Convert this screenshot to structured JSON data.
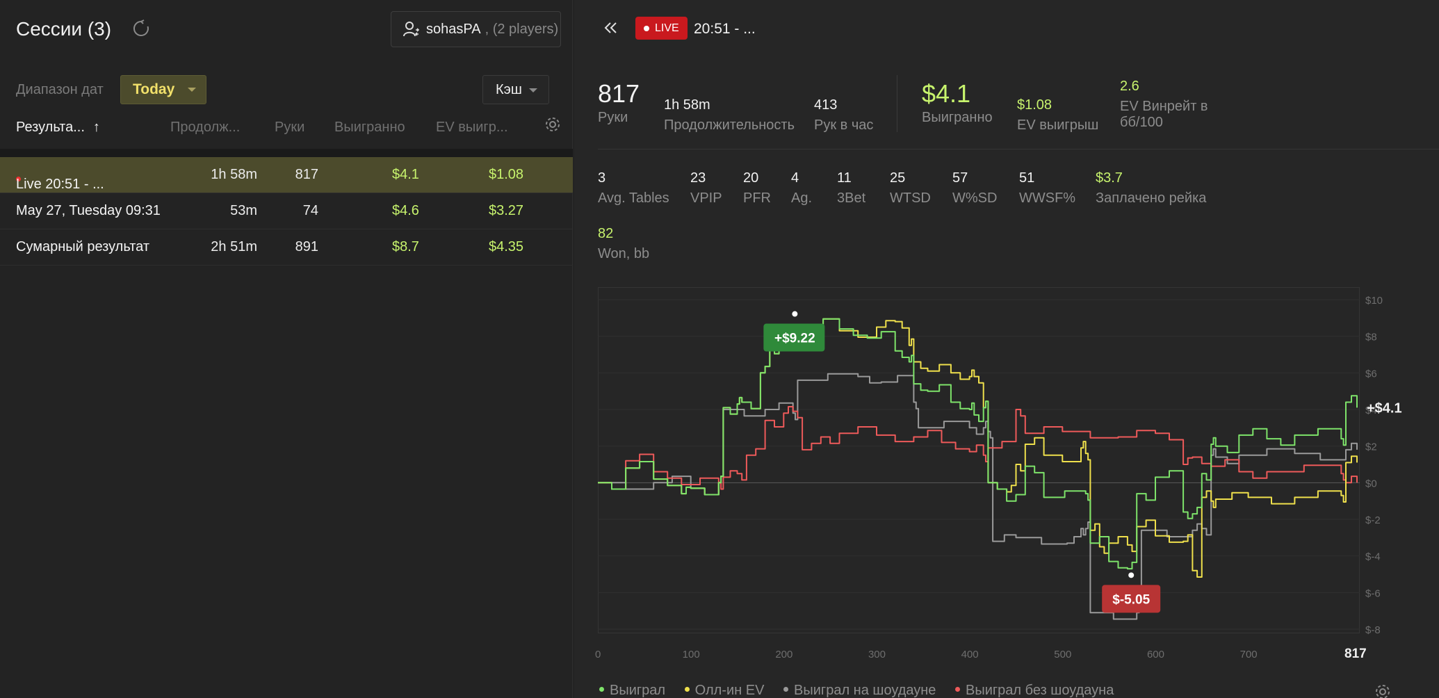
{
  "left": {
    "title": "Сессии (3)",
    "players_button": {
      "name": "sohasPA",
      "count": ", (2 players)"
    },
    "date_range_label": "Диапазон дат",
    "date_select": "Today",
    "game_select": "Кэш",
    "columns": {
      "result": "Результа...",
      "sort_arrow": "↑",
      "duration": "Продолж...",
      "hands": "Руки",
      "won": "Выигранно",
      "ev": "EV выигр..."
    },
    "rows": [
      {
        "name": "Live 20:51 - ...",
        "duration": "1h 58m",
        "hands": "817",
        "won": "$4.1",
        "ev": "$1.08"
      },
      {
        "name": "May 27, Tuesday 09:31",
        "duration": "53m",
        "hands": "74",
        "won": "$4.6",
        "ev": "$3.27"
      },
      {
        "name": "Сумарный результат",
        "duration": "2h 51m",
        "hands": "891",
        "won": "$8.7",
        "ev": "$4.35"
      }
    ]
  },
  "right": {
    "live_label": "LIVE",
    "session_time": "20:51 - ...",
    "top_stats": {
      "hands": {
        "value": "817",
        "label": "Руки"
      },
      "duration": {
        "value": "1h 58m",
        "label": "Продолжительность"
      },
      "hands_per_hour": {
        "value": "413",
        "label": "Рук в час"
      },
      "won": {
        "value": "$4.1",
        "label": "Выигранно"
      },
      "ev_won": {
        "value": "$1.08",
        "label": "EV выигрыш"
      },
      "ev_winrate": {
        "value": "2.6",
        "label_line1": "EV Винрейт в",
        "label_line2": "бб/100"
      }
    },
    "stats": [
      {
        "value": "3",
        "label": "Avg. Tables"
      },
      {
        "value": "23",
        "label": "VPIP"
      },
      {
        "value": "20",
        "label": "PFR"
      },
      {
        "value": "4",
        "label": "Ag."
      },
      {
        "value": "11",
        "label": "3Bet"
      },
      {
        "value": "25",
        "label": "WTSD"
      },
      {
        "value": "57",
        "label": "W%SD"
      },
      {
        "value": "51",
        "label": "WWSF%"
      },
      {
        "value": "$3.7",
        "label": "Заплачено рейка"
      }
    ],
    "won_bb": {
      "value": "82",
      "label": "Won, bb"
    },
    "legend": [
      {
        "label": "Выиграл",
        "color": "#7ee36a"
      },
      {
        "label": "Олл-ин EV",
        "color": "#efe04c"
      },
      {
        "label": "Выиграл на шоудауне",
        "color": "#9a9a9a"
      },
      {
        "label": "Выиграл без шоудауна",
        "color": "#ee5a5a"
      }
    ]
  },
  "chart_data": {
    "type": "line",
    "xlim": [
      0,
      817
    ],
    "ylim": [
      -8,
      10
    ],
    "x_ticks": [
      "0",
      "100",
      "200",
      "300",
      "400",
      "500",
      "600",
      "700",
      "817"
    ],
    "y_ticks": [
      "$10",
      "$8",
      "$6",
      "$4",
      "$2",
      "$0",
      "$-2",
      "$-4",
      "$-6",
      "$-8"
    ],
    "max_label": "+$9.22",
    "min_label": "$-5.05",
    "end_label": "+$4.1",
    "max_point": {
      "x": 212,
      "y": 9.22
    },
    "min_point": {
      "x": 574,
      "y": -5.05
    },
    "series": [
      {
        "name": "Выиграл",
        "color": "#7ee36a",
        "x": [
          0,
          30,
          60,
          90,
          100,
          130,
          135,
          150,
          155,
          175,
          185,
          195,
          210,
          225,
          260,
          290,
          320,
          335,
          340,
          355,
          380,
          400,
          405,
          415,
          420,
          440,
          460,
          480,
          525,
          530,
          550,
          570,
          580,
          600,
          630,
          640,
          650,
          660,
          665,
          690,
          720,
          750,
          800,
          805,
          817
        ],
        "y": [
          0,
          0.8,
          0.2,
          -0.6,
          -0.3,
          0,
          4.1,
          4.3,
          4.4,
          6,
          7.4,
          7.7,
          8,
          8.6,
          8.4,
          7.9,
          7.2,
          6.6,
          5.4,
          5,
          4.4,
          4,
          3.7,
          4.1,
          0,
          -1,
          0.9,
          -0.8,
          -0.6,
          -3.3,
          -4.3,
          -4.7,
          -0.6,
          0.3,
          -1.6,
          -1.7,
          0.5,
          2.1,
          2.0,
          2.6,
          2.4,
          2.6,
          2.4,
          4.4,
          4.1
        ]
      },
      {
        "name": "Олл-ин EV",
        "color": "#efe04c",
        "x": [
          0,
          30,
          60,
          90,
          100,
          130,
          135,
          150,
          155,
          175,
          185,
          195,
          210,
          225,
          260,
          300,
          320,
          335,
          340,
          355,
          380,
          400,
          405,
          415,
          420,
          440,
          450,
          460,
          480,
          520,
          525,
          530,
          540,
          550,
          570,
          580,
          600,
          630,
          640,
          650,
          660,
          665,
          700,
          750,
          800,
          805,
          817
        ],
        "y": [
          0,
          0.8,
          0.2,
          -0.6,
          -0.3,
          0,
          4.1,
          4.3,
          4.4,
          6,
          7.4,
          7.7,
          8,
          8.6,
          8.3,
          8.5,
          8.8,
          7.5,
          6.6,
          6.1,
          6,
          5.8,
          5.8,
          4.1,
          0,
          -0.5,
          1,
          2.1,
          1.5,
          1.9,
          1.6,
          -2.6,
          -3.5,
          -3.3,
          -3.4,
          -2.4,
          -2.9,
          -3.2,
          -4.8,
          -0.8,
          -1,
          -0.9,
          -0.8,
          -0.8,
          -0.7,
          1.1,
          1.1
        ]
      },
      {
        "name": "Выиграл на шоудауне",
        "color": "#9a9a9a",
        "x": [
          0,
          60,
          100,
          130,
          135,
          180,
          210,
          215,
          280,
          305,
          340,
          345,
          400,
          415,
          420,
          425,
          450,
          505,
          520,
          525,
          530,
          580,
          585,
          640,
          650,
          660,
          665,
          690,
          750,
          805,
          817
        ],
        "y": [
          0,
          0,
          -0.3,
          0,
          4,
          4,
          3.8,
          5.6,
          5.8,
          5.5,
          4.4,
          3.0,
          3.0,
          3.0,
          2.8,
          -3.2,
          -3.0,
          -3.3,
          -2.5,
          -2.5,
          -7.1,
          -7.1,
          -2.6,
          -2.6,
          -2.5,
          1.5,
          1.4,
          1.5,
          1.6,
          1.8,
          1.8
        ]
      },
      {
        "name": "Выиграл без шоудауна",
        "color": "#ee5a5a",
        "x": [
          0,
          30,
          60,
          90,
          130,
          135,
          150,
          160,
          180,
          200,
          210,
          220,
          240,
          260,
          300,
          340,
          370,
          400,
          415,
          420,
          450,
          460,
          500,
          560,
          600,
          630,
          640,
          660,
          690,
          720,
          800,
          805,
          817
        ],
        "y": [
          0,
          1.2,
          0.6,
          -0.1,
          0,
          0.3,
          0.5,
          1.5,
          3.4,
          3.8,
          3.9,
          1.8,
          2.5,
          2.7,
          2.6,
          2.5,
          2.2,
          1.7,
          1.5,
          1.9,
          4.0,
          2.7,
          2.8,
          2.5,
          2.7,
          1.0,
          1.4,
          0.9,
          0.6,
          0.6,
          0.5,
          0,
          0
        ]
      }
    ]
  }
}
